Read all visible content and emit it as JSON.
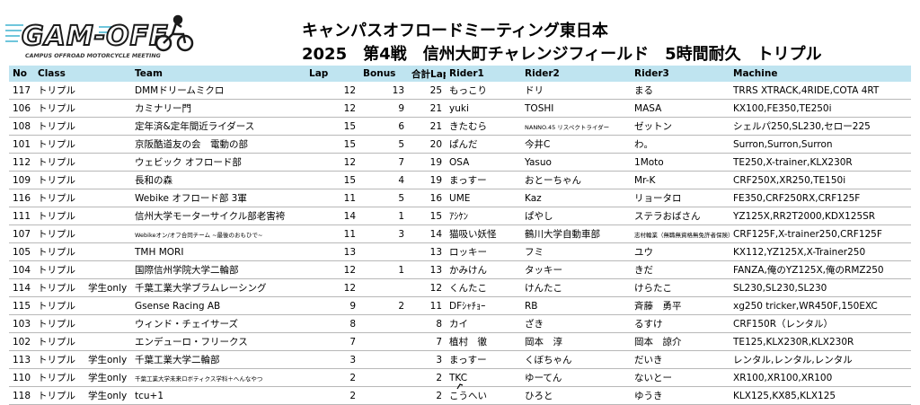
{
  "logo": {
    "text": "GAM-OFF",
    "tagline": "CAMPUS OFFROAD MOTORCYCLE MEETING",
    "icon": "dirt-bike-icon",
    "accent": "#2a2a2a",
    "stripe": "#6fc6dc"
  },
  "header": {
    "title1": "キャンパスオフロードミーティング東日本",
    "title2": "2025　第4戦　信州大町チャレンジフィールド　5時間耐久　トリプル"
  },
  "table": {
    "columns": [
      "No",
      "Class",
      "Team",
      "Lap",
      "Bonus",
      "合計Lap",
      "Rider1",
      "Rider2",
      "Rider3",
      "Machine"
    ],
    "rows": [
      {
        "no": "117",
        "cls": "トリプル",
        "sub": "",
        "team": "DMMドリームミクロ",
        "lap": "12",
        "bonus": "13",
        "total": "25",
        "r1": "もっこり",
        "r2": "ドリ",
        "r3": "まる",
        "machine": "TRRS XTRACK,4RIDE,COTA 4RT"
      },
      {
        "no": "106",
        "cls": "トリプル",
        "sub": "",
        "team": "カミナリー門",
        "lap": "12",
        "bonus": "9",
        "total": "21",
        "r1": "yuki",
        "r2": "TOSHI",
        "r3": "MASA",
        "machine": "KX100,FE350,TE250i"
      },
      {
        "no": "108",
        "cls": "トリプル",
        "sub": "",
        "team": "定年済&定年間近ライダース",
        "lap": "15",
        "bonus": "6",
        "total": "21",
        "r1": "きたむら",
        "r2": "NANNO.45 リスペクトライダー",
        "r3": "ゼットン",
        "machine": "シェルパ250,SL230,セロー225",
        "r2small": true
      },
      {
        "no": "101",
        "cls": "トリプル",
        "sub": "",
        "team": "京阪酷道友の会　電動の部",
        "lap": "15",
        "bonus": "5",
        "total": "20",
        "r1": "ぱんだ",
        "r2": "今井C",
        "r3": "わ。",
        "machine": "Surron,Surron,Surron"
      },
      {
        "no": "112",
        "cls": "トリプル",
        "sub": "",
        "team": "ウェビック オフロード部",
        "lap": "12",
        "bonus": "7",
        "total": "19",
        "r1": "OSA",
        "r2": "Yasuo",
        "r3": "1Moto",
        "machine": "TE250,X-trainer,KLX230R"
      },
      {
        "no": "109",
        "cls": "トリプル",
        "sub": "",
        "team": "長和の森",
        "lap": "15",
        "bonus": "4",
        "total": "19",
        "r1": "まっすー",
        "r2": "おとーちゃん",
        "r3": "Mr-K",
        "machine": "CRF250X,XR250,TE150i"
      },
      {
        "no": "116",
        "cls": "トリプル",
        "sub": "",
        "team": "Webike オフロード部 3軍",
        "lap": "11",
        "bonus": "5",
        "total": "16",
        "r1": "UME",
        "r2": "Kaz",
        "r3": "リョータロ",
        "machine": "FE350,CRF250RX,CRF125F"
      },
      {
        "no": "111",
        "cls": "トリプル",
        "sub": "",
        "team": "信州大学モーターサイクル部老害袴",
        "lap": "14",
        "bonus": "1",
        "total": "15",
        "r1": "ｱｼｹﾝ",
        "r2": "ぱやし",
        "r3": "ステラおばさん",
        "machine": "YZ125X,RR2T2000,KDX125SR"
      },
      {
        "no": "107",
        "cls": "トリプル",
        "sub": "",
        "team": "Webikeオン/オフ合同チーム ~最後のおもひで~",
        "lap": "11",
        "bonus": "3",
        "total": "14",
        "r1": "猫吸い妖怪",
        "r2": "鶴川大学自動車部",
        "r3": "志村輪業（無職無資格無免許者保険）",
        "machine": "CRF125F,X-trainer250,CRF125F",
        "teamsmall": true,
        "r3small": true
      },
      {
        "no": "105",
        "cls": "トリプル",
        "sub": "",
        "team": "TMH MORI",
        "lap": "13",
        "bonus": "",
        "total": "13",
        "r1": "ロッキー",
        "r2": "フミ",
        "r3": "ユウ",
        "machine": "KX112,YZ125X,X-Trainer250"
      },
      {
        "no": "104",
        "cls": "トリプル",
        "sub": "",
        "team": "国際信州学院大学二輪部",
        "lap": "12",
        "bonus": "1",
        "total": "13",
        "r1": "かみけん",
        "r2": "タッキー",
        "r3": "きだ",
        "machine": "FANZA,俺のYZ125X,俺のRMZ250"
      },
      {
        "no": "114",
        "cls": "トリプル",
        "sub": "学生only",
        "team": "千葉工業大学ブラムレーシング",
        "lap": "12",
        "bonus": "",
        "total": "12",
        "r1": "くんたこ",
        "r2": "けんたこ",
        "r3": "けらたこ",
        "machine": "SL230,SL230,SL230"
      },
      {
        "no": "115",
        "cls": "トリプル",
        "sub": "",
        "team": "Gsense Racing AB",
        "lap": "9",
        "bonus": "2",
        "total": "11",
        "r1": "DFｼｬﾁｮｰ",
        "r2": "RB",
        "r3": "斉藤　勇平",
        "machine": "xg250 tricker,WR450F,150EXC"
      },
      {
        "no": "103",
        "cls": "トリプル",
        "sub": "",
        "team": "ウィンド・チェイサーズ",
        "lap": "8",
        "bonus": "",
        "total": "8",
        "r1": "カイ",
        "r2": "ざき",
        "r3": "るすけ",
        "machine": "CRF150R（レンタル）"
      },
      {
        "no": "102",
        "cls": "トリプル",
        "sub": "",
        "team": "エンデューロ・フリークス",
        "lap": "7",
        "bonus": "",
        "total": "7",
        "r1": "植村　徹",
        "r2": "岡本　淳",
        "r3": "岡本　諒介",
        "machine": "TE125,KLX230R,KLX230R"
      },
      {
        "no": "113",
        "cls": "トリプル",
        "sub": "学生only",
        "team": "千葉工業大学二輪部",
        "lap": "3",
        "bonus": "",
        "total": "3",
        "r1": "まっすー",
        "r2": "くぼちゃん",
        "r3": "だいき",
        "machine": "レンタル,レンタル,レンタル"
      },
      {
        "no": "110",
        "cls": "トリプル",
        "sub": "学生only",
        "team": "千葉工業大学未来ロボティクス学科＋へんなやつ",
        "lap": "2",
        "bonus": "",
        "total": "2",
        "r1": "TKC",
        "r2": "ゆーてん",
        "r3": "ないとー",
        "machine": "XR100,XR100,XR100",
        "teamsmall": true
      },
      {
        "no": "118",
        "cls": "トリプル",
        "sub": "学生only",
        "team": "tcu+1",
        "lap": "2",
        "bonus": "",
        "total": "2",
        "r1": "こうへい",
        "r2": "ひろと",
        "r3": "ゆうき",
        "machine": "KLX125,KX85,KLX125"
      }
    ]
  }
}
